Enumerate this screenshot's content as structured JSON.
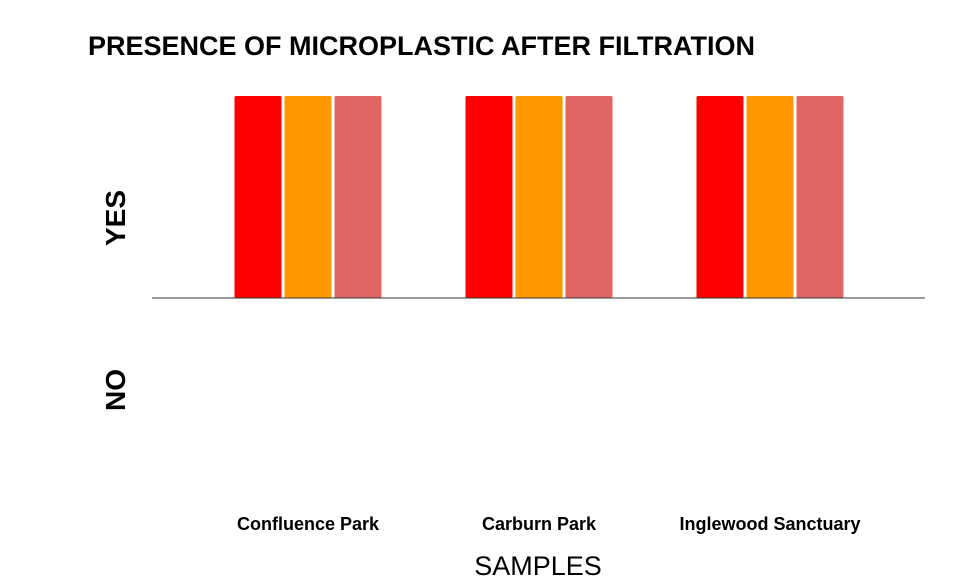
{
  "chart_data": {
    "type": "bar",
    "title": "PRESENCE OF MICROPLASTIC AFTER FILTRATION",
    "xlabel": "SAMPLES",
    "ylabel": "",
    "categories": [
      "Confluence Park",
      "Carburn Park",
      "Inglewood Sanctuary"
    ],
    "y_categories": [
      "NO",
      "YES"
    ],
    "series": [
      {
        "color": "#ff0000",
        "values": [
          1,
          1,
          1
        ]
      },
      {
        "color": "#ff9900",
        "values": [
          1,
          1,
          1
        ]
      },
      {
        "color": "#e06666",
        "values": [
          1,
          1,
          1
        ]
      }
    ],
    "ylim": [
      -1,
      1
    ],
    "grid": false,
    "legend": "none"
  }
}
